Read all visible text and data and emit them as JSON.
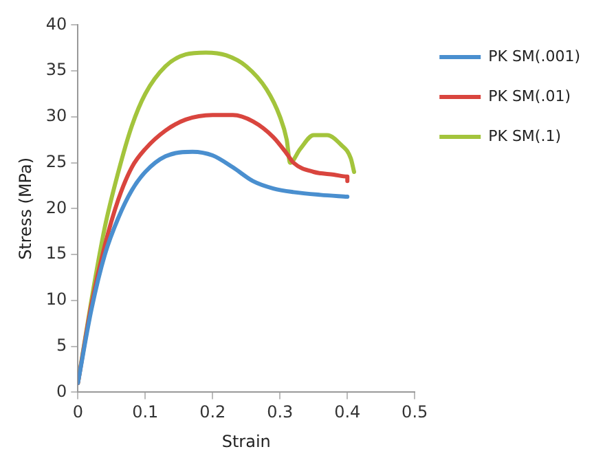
{
  "chart_data": {
    "type": "line",
    "xlabel": "Strain",
    "ylabel": "Stress (MPa)",
    "xlim": [
      0,
      0.5
    ],
    "xticks": [
      0,
      0.1,
      0.2,
      0.3,
      0.4,
      0.5
    ],
    "ylim": [
      0,
      40
    ],
    "yticks": [
      0,
      5,
      10,
      15,
      20,
      25,
      30,
      35,
      40
    ],
    "grid": false,
    "legend": "top right",
    "marker": "none",
    "line_style": "solid",
    "series": [
      {
        "name": "PK SM(.001)",
        "color": "#4a8fcf",
        "x": [
          0,
          0.02,
          0.04,
          0.06,
          0.08,
          0.1,
          0.13,
          0.17,
          0.2,
          0.23,
          0.26,
          0.29,
          0.32,
          0.36,
          0.4
        ],
        "values": [
          1,
          9,
          15,
          19,
          22,
          24,
          25.7,
          26.2,
          25.8,
          24.5,
          23,
          22.2,
          21.8,
          21.5,
          21.3
        ]
      },
      {
        "name": "PK SM(.01)",
        "color": "#d9453e",
        "x": [
          0,
          0.02,
          0.04,
          0.06,
          0.08,
          0.1,
          0.13,
          0.16,
          0.2,
          0.23,
          0.26,
          0.29,
          0.31,
          0.32,
          0.35,
          0.38,
          0.4,
          0.4
        ],
        "values": [
          1,
          9.5,
          16,
          21,
          24.5,
          26.5,
          28.5,
          29.7,
          30.2,
          30.2,
          29.5,
          27.8,
          26,
          25,
          24,
          23.7,
          23.5,
          23
        ]
      },
      {
        "name": "PK SM(.1)",
        "color": "#a3c43c",
        "x": [
          0,
          0.02,
          0.04,
          0.06,
          0.08,
          0.1,
          0.13,
          0.16,
          0.19,
          0.22,
          0.25,
          0.28,
          0.3,
          0.31,
          0.315,
          0.33,
          0.35,
          0.37,
          0.39,
          0.405,
          0.41
        ],
        "values": [
          1,
          10,
          18,
          24,
          29,
          32.5,
          35.5,
          36.8,
          37,
          36.7,
          35.5,
          33,
          30,
          27.5,
          25,
          26.5,
          28,
          28,
          27,
          25.5,
          24
        ]
      }
    ]
  }
}
